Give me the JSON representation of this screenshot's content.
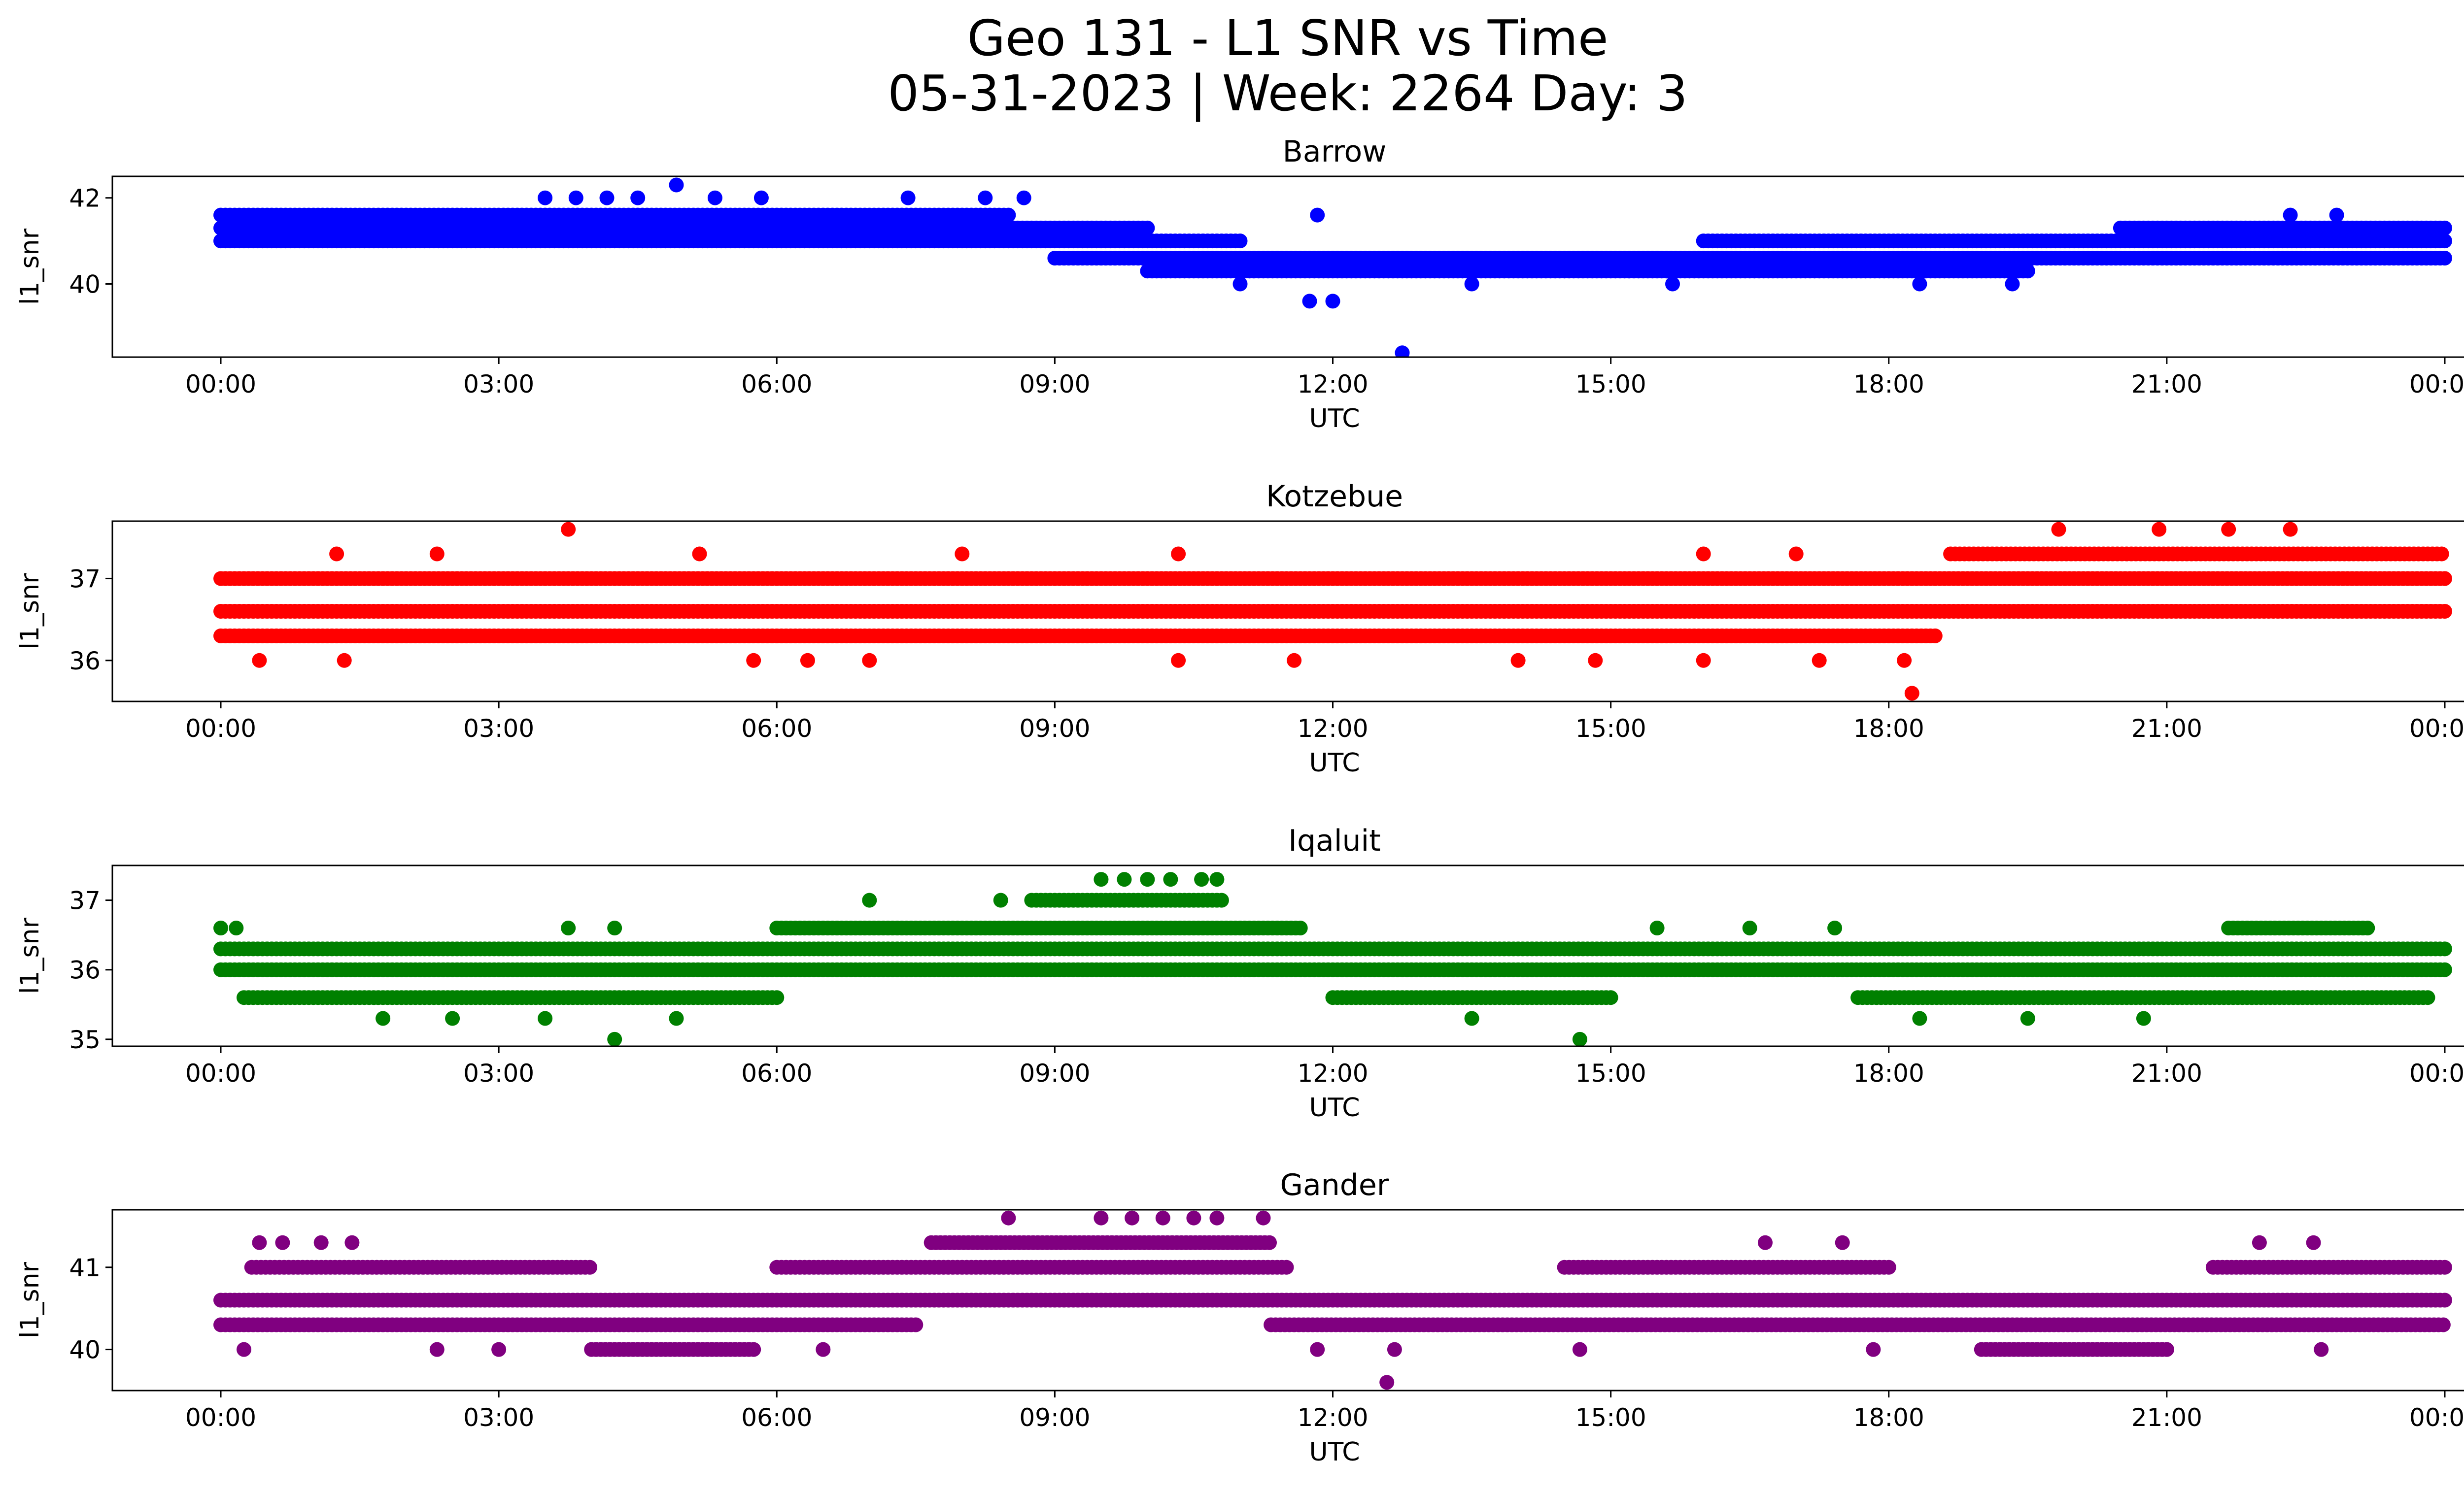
{
  "figure": {
    "title_line1": "Geo 131 - L1 SNR vs Time",
    "title_line2": "05-31-2023 | Week: 2264 Day: 3"
  },
  "chart_data": [
    {
      "type": "scatter",
      "title": "Barrow",
      "xlabel": "UTC",
      "ylabel": "l1_snr",
      "color": "#0000ff",
      "xlim": [
        "23:30",
        "24:20"
      ],
      "x_ticks": [
        "00:00",
        "03:00",
        "06:00",
        "09:00",
        "12:00",
        "15:00",
        "18:00",
        "21:00",
        "00:00"
      ],
      "ylim": [
        38.3,
        42.5
      ],
      "y_ticks": [
        40,
        42
      ],
      "dense_bands": [
        {
          "y": 41.6,
          "from": "00:00",
          "to": "08:30"
        },
        {
          "y": 41.3,
          "from": "00:00",
          "to": "10:00"
        },
        {
          "y": 41.0,
          "from": "00:00",
          "to": "11:00"
        },
        {
          "y": 40.6,
          "from": "09:00",
          "to": "24:00"
        },
        {
          "y": 40.3,
          "from": "10:00",
          "to": "19:30"
        },
        {
          "y": 41.0,
          "from": "16:00",
          "to": "24:00"
        },
        {
          "y": 41.3,
          "from": "20:30",
          "to": "24:00"
        }
      ],
      "sparse_points": [
        {
          "x": "03:30",
          "y": 42.0
        },
        {
          "x": "03:50",
          "y": 42.0
        },
        {
          "x": "04:10",
          "y": 42.0
        },
        {
          "x": "04:30",
          "y": 42.0
        },
        {
          "x": "04:55",
          "y": 42.3
        },
        {
          "x": "05:20",
          "y": 42.0
        },
        {
          "x": "05:50",
          "y": 42.0
        },
        {
          "x": "07:25",
          "y": 42.0
        },
        {
          "x": "08:15",
          "y": 42.0
        },
        {
          "x": "08:40",
          "y": 42.0
        },
        {
          "x": "11:50",
          "y": 41.6
        },
        {
          "x": "22:20",
          "y": 41.6
        },
        {
          "x": "22:50",
          "y": 41.6
        },
        {
          "x": "11:45",
          "y": 39.6
        },
        {
          "x": "12:00",
          "y": 39.6
        },
        {
          "x": "12:45",
          "y": 38.4
        },
        {
          "x": "11:00",
          "y": 40.0
        },
        {
          "x": "13:30",
          "y": 40.0
        },
        {
          "x": "15:40",
          "y": 40.0
        },
        {
          "x": "18:20",
          "y": 40.0
        },
        {
          "x": "19:20",
          "y": 40.0
        }
      ]
    },
    {
      "type": "scatter",
      "title": "Kotzebue",
      "xlabel": "UTC",
      "ylabel": "l1_snr",
      "color": "#ff0000",
      "xlim": [
        "23:30",
        "24:20"
      ],
      "x_ticks": [
        "00:00",
        "03:00",
        "06:00",
        "09:00",
        "12:00",
        "15:00",
        "18:00",
        "21:00",
        "00:00"
      ],
      "ylim": [
        35.5,
        37.7
      ],
      "y_ticks": [
        36,
        37
      ],
      "dense_bands": [
        {
          "y": 37.0,
          "from": "00:00",
          "to": "24:00"
        },
        {
          "y": 36.6,
          "from": "00:00",
          "to": "24:00"
        },
        {
          "y": 36.3,
          "from": "00:00",
          "to": "18:30"
        },
        {
          "y": 37.3,
          "from": "18:40",
          "to": "24:00"
        }
      ],
      "sparse_points": [
        {
          "x": "03:45",
          "y": 37.6
        },
        {
          "x": "19:50",
          "y": 37.6
        },
        {
          "x": "20:55",
          "y": 37.6
        },
        {
          "x": "21:40",
          "y": 37.6
        },
        {
          "x": "22:20",
          "y": 37.6
        },
        {
          "x": "18:15",
          "y": 35.6
        },
        {
          "x": "00:25",
          "y": 36.0
        },
        {
          "x": "01:20",
          "y": 36.0
        },
        {
          "x": "05:45",
          "y": 36.0
        },
        {
          "x": "06:20",
          "y": 36.0
        },
        {
          "x": "07:00",
          "y": 36.0
        },
        {
          "x": "10:20",
          "y": 36.0
        },
        {
          "x": "11:35",
          "y": 36.0
        },
        {
          "x": "14:00",
          "y": 36.0
        },
        {
          "x": "14:50",
          "y": 36.0
        },
        {
          "x": "16:00",
          "y": 36.0
        },
        {
          "x": "17:15",
          "y": 36.0
        },
        {
          "x": "18:10",
          "y": 36.0
        },
        {
          "x": "01:15",
          "y": 37.3
        },
        {
          "x": "02:20",
          "y": 37.3
        },
        {
          "x": "05:10",
          "y": 37.3
        },
        {
          "x": "08:00",
          "y": 37.3
        },
        {
          "x": "10:20",
          "y": 37.3
        },
        {
          "x": "16:00",
          "y": 37.3
        },
        {
          "x": "17:00",
          "y": 37.3
        }
      ]
    },
    {
      "type": "scatter",
      "title": "Iqaluit",
      "xlabel": "UTC",
      "ylabel": "l1_snr",
      "color": "#008000",
      "xlim": [
        "23:30",
        "24:20"
      ],
      "x_ticks": [
        "00:00",
        "03:00",
        "06:00",
        "09:00",
        "12:00",
        "15:00",
        "18:00",
        "21:00",
        "00:00"
      ],
      "ylim": [
        34.9,
        37.5
      ],
      "y_ticks": [
        35,
        36,
        37
      ],
      "dense_bands": [
        {
          "y": 36.3,
          "from": "00:00",
          "to": "24:00"
        },
        {
          "y": 36.0,
          "from": "00:00",
          "to": "24:00"
        },
        {
          "y": 35.6,
          "from": "00:15",
          "to": "06:00"
        },
        {
          "y": 36.6,
          "from": "06:00",
          "to": "11:40"
        },
        {
          "y": 37.0,
          "from": "08:45",
          "to": "10:50"
        },
        {
          "y": 35.6,
          "from": "12:00",
          "to": "15:00"
        },
        {
          "y": 35.6,
          "from": "17:40",
          "to": "23:50"
        },
        {
          "y": 36.6,
          "from": "21:40",
          "to": "23:10"
        }
      ],
      "sparse_points": [
        {
          "x": "09:30",
          "y": 37.3
        },
        {
          "x": "09:45",
          "y": 37.3
        },
        {
          "x": "10:00",
          "y": 37.3
        },
        {
          "x": "10:15",
          "y": 37.3
        },
        {
          "x": "10:35",
          "y": 37.3
        },
        {
          "x": "10:45",
          "y": 37.3
        },
        {
          "x": "04:15",
          "y": 35.0
        },
        {
          "x": "14:40",
          "y": 35.0
        },
        {
          "x": "01:45",
          "y": 35.3
        },
        {
          "x": "02:30",
          "y": 35.3
        },
        {
          "x": "03:30",
          "y": 35.3
        },
        {
          "x": "04:55",
          "y": 35.3
        },
        {
          "x": "13:30",
          "y": 35.3
        },
        {
          "x": "18:20",
          "y": 35.3
        },
        {
          "x": "19:30",
          "y": 35.3
        },
        {
          "x": "20:45",
          "y": 35.3
        },
        {
          "x": "00:00",
          "y": 36.6
        },
        {
          "x": "00:10",
          "y": 36.6
        },
        {
          "x": "03:45",
          "y": 36.6
        },
        {
          "x": "04:15",
          "y": 36.6
        },
        {
          "x": "15:30",
          "y": 36.6
        },
        {
          "x": "16:30",
          "y": 36.6
        },
        {
          "x": "17:25",
          "y": 36.6
        },
        {
          "x": "07:00",
          "y": 37.0
        },
        {
          "x": "08:25",
          "y": 37.0
        }
      ]
    },
    {
      "type": "scatter",
      "title": "Gander",
      "xlabel": "UTC",
      "ylabel": "l1_snr",
      "color": "#800080",
      "xlim": [
        "23:30",
        "24:20"
      ],
      "x_ticks": [
        "00:00",
        "03:00",
        "06:00",
        "09:00",
        "12:00",
        "15:00",
        "18:00",
        "21:00",
        "00:00"
      ],
      "ylim": [
        39.5,
        41.7
      ],
      "y_ticks": [
        40,
        41
      ],
      "dense_bands": [
        {
          "y": 40.6,
          "from": "00:00",
          "to": "24:00"
        },
        {
          "y": 40.3,
          "from": "00:00",
          "to": "07:30"
        },
        {
          "y": 41.0,
          "from": "06:00",
          "to": "11:30"
        },
        {
          "y": 41.3,
          "from": "07:40",
          "to": "11:20"
        },
        {
          "y": 40.3,
          "from": "11:20",
          "to": "24:00"
        },
        {
          "y": 41.0,
          "from": "14:30",
          "to": "18:00"
        },
        {
          "y": 41.0,
          "from": "21:30",
          "to": "24:00"
        },
        {
          "y": 40.0,
          "from": "19:00",
          "to": "21:00"
        },
        {
          "y": 40.0,
          "from": "04:00",
          "to": "05:45"
        },
        {
          "y": 41.0,
          "from": "00:20",
          "to": "04:00"
        }
      ],
      "sparse_points": [
        {
          "x": "08:30",
          "y": 41.6
        },
        {
          "x": "09:30",
          "y": 41.6
        },
        {
          "x": "09:50",
          "y": 41.6
        },
        {
          "x": "10:10",
          "y": 41.6
        },
        {
          "x": "10:30",
          "y": 41.6
        },
        {
          "x": "10:45",
          "y": 41.6
        },
        {
          "x": "11:15",
          "y": 41.6
        },
        {
          "x": "12:35",
          "y": 39.6
        },
        {
          "x": "00:25",
          "y": 41.3
        },
        {
          "x": "00:40",
          "y": 41.3
        },
        {
          "x": "01:05",
          "y": 41.3
        },
        {
          "x": "01:25",
          "y": 41.3
        },
        {
          "x": "16:40",
          "y": 41.3
        },
        {
          "x": "17:30",
          "y": 41.3
        },
        {
          "x": "22:00",
          "y": 41.3
        },
        {
          "x": "22:35",
          "y": 41.3
        },
        {
          "x": "00:15",
          "y": 40.0
        },
        {
          "x": "02:20",
          "y": 40.0
        },
        {
          "x": "03:00",
          "y": 40.0
        },
        {
          "x": "06:30",
          "y": 40.0
        },
        {
          "x": "11:50",
          "y": 40.0
        },
        {
          "x": "12:40",
          "y": 40.0
        },
        {
          "x": "14:40",
          "y": 40.0
        },
        {
          "x": "17:50",
          "y": 40.0
        },
        {
          "x": "22:40",
          "y": 40.0
        }
      ]
    }
  ]
}
